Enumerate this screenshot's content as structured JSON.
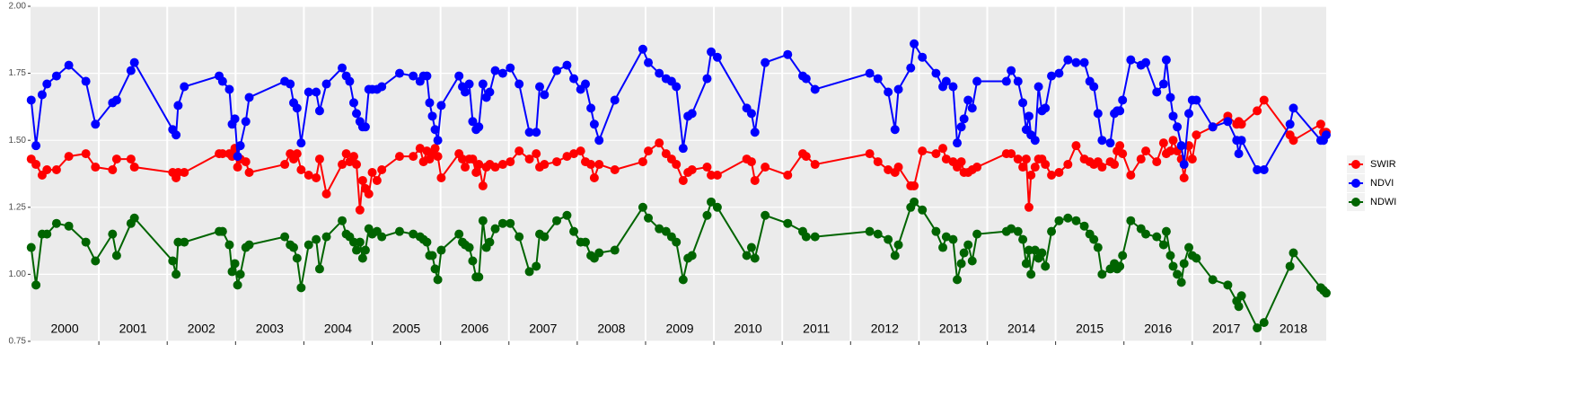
{
  "chart_data": {
    "type": "line",
    "xlim": [
      2000.0,
      2018.96
    ],
    "xticks": [
      2001,
      2002,
      2003,
      2004,
      2005,
      2006,
      2007,
      2008,
      2009,
      2010,
      2011,
      2012,
      2013,
      2014,
      2015,
      2016,
      2017,
      2018
    ],
    "year_labels": [
      "2000",
      "2001",
      "2002",
      "2003",
      "2004",
      "2005",
      "2006",
      "2007",
      "2008",
      "2009",
      "2010",
      "2011",
      "2012",
      "2013",
      "2014",
      "2015",
      "2016",
      "2017",
      "2018"
    ],
    "ylim": [
      0.75,
      2.0
    ],
    "yticks": [
      0.75,
      {
        "value": 1,
        "label": "1.00"
      },
      1.25,
      {
        "value": 1.5,
        "label": "1.50"
      },
      1.75,
      {
        "value": 2,
        "label": "2.00"
      }
    ],
    "grid": true,
    "legend": "right",
    "x": [
      2000.01,
      2000.08,
      2000.17,
      2000.24,
      2000.38,
      2000.56,
      2000.81,
      2000.95,
      2001.2,
      2001.26,
      2001.47,
      2001.52,
      2002.08,
      2002.13,
      2002.16,
      2002.25,
      2002.76,
      2002.81,
      2002.91,
      2002.95,
      2002.99,
      2003.03,
      2003.07,
      2003.15,
      2003.2,
      2003.72,
      2003.8,
      2003.85,
      2003.9,
      2003.96,
      2004.07,
      2004.18,
      2004.23,
      2004.33,
      2004.56,
      2004.62,
      2004.67,
      2004.73,
      2004.77,
      2004.82,
      2004.86,
      2004.9,
      2004.95,
      2005.0,
      2005.07,
      2005.14,
      2005.4,
      2005.6,
      2005.7,
      2005.75,
      2005.8,
      2005.84,
      2005.88,
      2005.92,
      2005.96,
      2006.01,
      2006.27,
      2006.32,
      2006.36,
      2006.42,
      2006.47,
      2006.52,
      2006.56,
      2006.62,
      2006.67,
      2006.72,
      2006.8,
      2006.91,
      2007.02,
      2007.15,
      2007.3,
      2007.4,
      2007.45,
      2007.52,
      2007.7,
      2007.85,
      2007.95,
      2008.05,
      2008.12,
      2008.2,
      2008.25,
      2008.32,
      2008.55,
      2008.96,
      2009.04,
      2009.2,
      2009.3,
      2009.38,
      2009.45,
      2009.55,
      2009.62,
      2009.68,
      2009.9,
      2009.96,
      2010.05,
      2010.48,
      2010.55,
      2010.6,
      2010.75,
      2011.08,
      2011.3,
      2011.35,
      2011.48,
      2012.28,
      2012.4,
      2012.55,
      2012.65,
      2012.7,
      2012.88,
      2012.93,
      2013.05,
      2013.25,
      2013.35,
      2013.4,
      2013.5,
      2013.56,
      2013.62,
      2013.66,
      2013.72,
      2013.78,
      2013.85,
      2014.28,
      2014.35,
      2014.45,
      2014.52,
      2014.57,
      2014.61,
      2014.64,
      2014.7,
      2014.75,
      2014.8,
      2014.85,
      2014.94,
      2015.05,
      2015.18,
      2015.3,
      2015.42,
      2015.5,
      2015.56,
      2015.62,
      2015.68,
      2015.8,
      2015.86,
      2015.9,
      2015.94,
      2015.98,
      2016.1,
      2016.25,
      2016.32,
      2016.48,
      2016.58,
      2016.62,
      2016.68,
      2016.72,
      2016.78,
      2016.84,
      2016.88,
      2016.95,
      2017.0,
      2017.06,
      2017.3,
      2017.52,
      2017.65,
      2017.68,
      2017.72,
      2017.95,
      2018.05,
      2018.43,
      2018.48,
      2018.88,
      2018.92,
      2018.96
    ],
    "series": [
      {
        "name": "SWIR",
        "color": "#ff0000",
        "values": [
          1.43,
          1.41,
          1.37,
          1.39,
          1.39,
          1.44,
          1.45,
          1.4,
          1.39,
          1.43,
          1.43,
          1.4,
          1.38,
          1.36,
          1.38,
          1.38,
          1.45,
          1.45,
          1.45,
          1.44,
          1.47,
          1.4,
          1.43,
          1.42,
          1.38,
          1.41,
          1.45,
          1.43,
          1.45,
          1.39,
          1.37,
          1.36,
          1.43,
          1.3,
          1.41,
          1.45,
          1.42,
          1.44,
          1.41,
          1.24,
          1.35,
          1.32,
          1.3,
          1.38,
          1.35,
          1.39,
          1.44,
          1.44,
          1.47,
          1.42,
          1.46,
          1.43,
          1.45,
          1.47,
          1.44,
          1.36,
          1.45,
          1.43,
          1.4,
          1.43,
          1.43,
          1.38,
          1.41,
          1.33,
          1.4,
          1.41,
          1.4,
          1.41,
          1.42,
          1.46,
          1.43,
          1.45,
          1.4,
          1.41,
          1.42,
          1.44,
          1.45,
          1.46,
          1.42,
          1.41,
          1.36,
          1.41,
          1.39,
          1.42,
          1.46,
          1.49,
          1.45,
          1.43,
          1.41,
          1.35,
          1.38,
          1.39,
          1.4,
          1.37,
          1.37,
          1.43,
          1.42,
          1.35,
          1.4,
          1.37,
          1.45,
          1.44,
          1.41,
          1.45,
          1.42,
          1.39,
          1.38,
          1.4,
          1.33,
          1.33,
          1.46,
          1.45,
          1.47,
          1.43,
          1.42,
          1.4,
          1.42,
          1.38,
          1.38,
          1.39,
          1.4,
          1.45,
          1.45,
          1.43,
          1.4,
          1.43,
          1.25,
          1.37,
          1.4,
          1.43,
          1.43,
          1.41,
          1.37,
          1.38,
          1.41,
          1.48,
          1.43,
          1.42,
          1.41,
          1.42,
          1.4,
          1.42,
          1.41,
          1.46,
          1.48,
          1.45,
          1.37,
          1.43,
          1.46,
          1.42,
          1.49,
          1.45,
          1.46,
          1.5,
          1.46,
          1.43,
          1.36,
          1.48,
          1.43,
          1.52,
          1.55,
          1.59,
          1.56,
          1.57,
          1.56,
          1.61,
          1.65,
          1.52,
          1.5,
          1.56,
          1.53,
          1.53
        ]
      },
      {
        "name": "NDVI",
        "color": "#0000ff",
        "values": [
          1.65,
          1.48,
          1.67,
          1.71,
          1.74,
          1.78,
          1.72,
          1.56,
          1.64,
          1.65,
          1.76,
          1.79,
          1.54,
          1.52,
          1.63,
          1.7,
          1.74,
          1.72,
          1.69,
          1.56,
          1.58,
          1.44,
          1.48,
          1.57,
          1.66,
          1.72,
          1.71,
          1.64,
          1.62,
          1.49,
          1.68,
          1.68,
          1.61,
          1.71,
          1.77,
          1.74,
          1.72,
          1.64,
          1.6,
          1.57,
          1.55,
          1.55,
          1.69,
          1.69,
          1.69,
          1.7,
          1.75,
          1.74,
          1.72,
          1.74,
          1.74,
          1.64,
          1.59,
          1.54,
          1.5,
          1.63,
          1.74,
          1.7,
          1.68,
          1.71,
          1.57,
          1.54,
          1.55,
          1.71,
          1.66,
          1.68,
          1.76,
          1.75,
          1.77,
          1.71,
          1.53,
          1.53,
          1.7,
          1.67,
          1.76,
          1.78,
          1.73,
          1.69,
          1.71,
          1.62,
          1.56,
          1.5,
          1.65,
          1.84,
          1.79,
          1.75,
          1.73,
          1.72,
          1.7,
          1.47,
          1.59,
          1.6,
          1.73,
          1.83,
          1.81,
          1.62,
          1.6,
          1.53,
          1.79,
          1.82,
          1.74,
          1.73,
          1.69,
          1.75,
          1.73,
          1.68,
          1.54,
          1.69,
          1.77,
          1.86,
          1.81,
          1.75,
          1.7,
          1.72,
          1.7,
          1.49,
          1.55,
          1.58,
          1.65,
          1.62,
          1.72,
          1.72,
          1.76,
          1.72,
          1.64,
          1.54,
          1.59,
          1.52,
          1.5,
          1.7,
          1.61,
          1.62,
          1.74,
          1.75,
          1.8,
          1.79,
          1.79,
          1.72,
          1.7,
          1.6,
          1.5,
          1.49,
          1.6,
          1.61,
          1.61,
          1.65,
          1.8,
          1.78,
          1.79,
          1.68,
          1.71,
          1.8,
          1.66,
          1.59,
          1.55,
          1.48,
          1.41,
          1.6,
          1.65,
          1.65,
          1.55,
          1.57,
          1.5,
          1.45,
          1.5,
          1.39,
          1.39,
          1.56,
          1.62,
          1.5,
          1.5,
          1.52
        ]
      },
      {
        "name": "NDWI",
        "color": "#006400",
        "values": [
          1.1,
          0.96,
          1.15,
          1.15,
          1.19,
          1.18,
          1.12,
          1.05,
          1.15,
          1.07,
          1.19,
          1.21,
          1.05,
          1.0,
          1.12,
          1.12,
          1.16,
          1.16,
          1.11,
          1.01,
          1.04,
          0.96,
          1.0,
          1.1,
          1.11,
          1.14,
          1.11,
          1.1,
          1.06,
          0.95,
          1.11,
          1.13,
          1.02,
          1.14,
          1.2,
          1.15,
          1.14,
          1.12,
          1.09,
          1.12,
          1.06,
          1.09,
          1.17,
          1.15,
          1.16,
          1.14,
          1.16,
          1.15,
          1.14,
          1.13,
          1.12,
          1.07,
          1.07,
          1.02,
          0.98,
          1.09,
          1.15,
          1.12,
          1.11,
          1.1,
          1.05,
          0.99,
          0.99,
          1.2,
          1.1,
          1.12,
          1.17,
          1.19,
          1.19,
          1.14,
          1.01,
          1.03,
          1.15,
          1.14,
          1.2,
          1.22,
          1.16,
          1.12,
          1.12,
          1.07,
          1.06,
          1.08,
          1.09,
          1.25,
          1.21,
          1.17,
          1.16,
          1.14,
          1.12,
          0.98,
          1.06,
          1.07,
          1.22,
          1.27,
          1.25,
          1.07,
          1.1,
          1.06,
          1.22,
          1.19,
          1.16,
          1.14,
          1.14,
          1.16,
          1.15,
          1.13,
          1.07,
          1.11,
          1.25,
          1.27,
          1.24,
          1.16,
          1.1,
          1.14,
          1.13,
          0.98,
          1.04,
          1.08,
          1.11,
          1.05,
          1.15,
          1.16,
          1.17,
          1.16,
          1.13,
          1.04,
          1.09,
          1.0,
          1.09,
          1.06,
          1.08,
          1.03,
          1.16,
          1.2,
          1.21,
          1.2,
          1.18,
          1.15,
          1.13,
          1.1,
          1.0,
          1.02,
          1.04,
          1.02,
          1.03,
          1.07,
          1.2,
          1.17,
          1.15,
          1.14,
          1.11,
          1.16,
          1.07,
          1.03,
          1.0,
          0.97,
          1.04,
          1.1,
          1.07,
          1.06,
          0.98,
          0.96,
          0.9,
          0.88,
          0.92,
          0.8,
          0.82,
          1.03,
          1.08,
          0.95,
          0.94,
          0.93
        ]
      }
    ]
  }
}
